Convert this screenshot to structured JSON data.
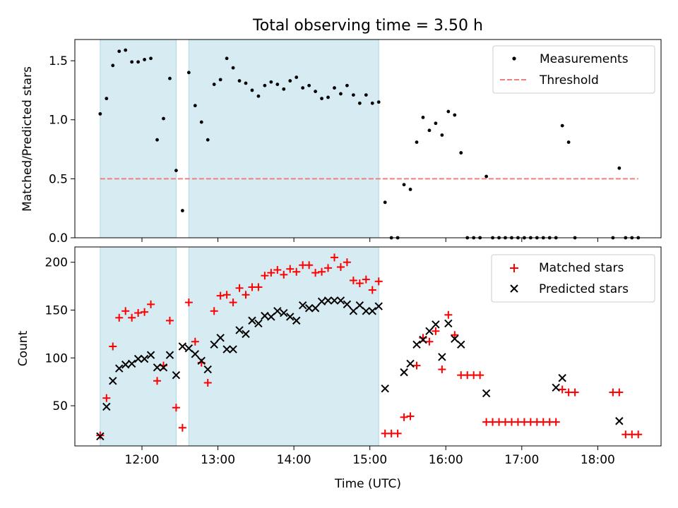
{
  "title": "Total observing time = 3.50 h",
  "colors": {
    "measurements": "#000000",
    "threshold": "#f08080",
    "matched": "#ff0000",
    "predicted": "#000000",
    "shade": "#add8e6"
  },
  "chart_data": [
    {
      "type": "scatter",
      "ylabel": "Matched/Predicted stars",
      "xlabel": "",
      "xlim": [
        "11:07",
        "18:50"
      ],
      "ylim": [
        0,
        1.68
      ],
      "yticks": [
        0.0,
        0.5,
        1.0,
        1.5
      ],
      "ytick_labels": [
        "0.0",
        "0.5",
        "1.0",
        "1.5"
      ],
      "grid": false,
      "legend_position": "top-right",
      "shaded_intervals": [
        [
          "11:27",
          "12:27"
        ],
        [
          "12:37",
          "15:07"
        ]
      ],
      "threshold": {
        "name": "Threshold",
        "value": 0.5,
        "x_range": [
          "11:27",
          "18:32"
        ]
      },
      "series": [
        {
          "name": "Measurements",
          "x": [
            "11:27",
            "11:32",
            "11:37",
            "11:42",
            "11:47",
            "11:52",
            "11:57",
            "12:02",
            "12:07",
            "12:12",
            "12:17",
            "12:22",
            "12:27",
            "12:32",
            "12:37",
            "12:42",
            "12:47",
            "12:52",
            "12:57",
            "13:02",
            "13:07",
            "13:12",
            "13:17",
            "13:22",
            "13:27",
            "13:32",
            "13:37",
            "13:42",
            "13:47",
            "13:52",
            "13:57",
            "14:02",
            "14:07",
            "14:12",
            "14:17",
            "14:22",
            "14:27",
            "14:32",
            "14:37",
            "14:42",
            "14:47",
            "14:52",
            "14:57",
            "15:02",
            "15:07",
            "15:12",
            "15:17",
            "15:22",
            "15:27",
            "15:32",
            "15:37",
            "15:42",
            "15:47",
            "15:52",
            "15:57",
            "16:02",
            "16:07",
            "16:12",
            "16:17",
            "16:22",
            "16:27",
            "16:32",
            "16:37",
            "16:42",
            "16:47",
            "16:52",
            "16:57",
            "17:02",
            "17:07",
            "17:12",
            "17:17",
            "17:22",
            "17:27",
            "17:32",
            "17:37",
            "17:42",
            "18:12",
            "18:17",
            "18:22",
            "18:27",
            "18:32"
          ],
          "y": [
            1.05,
            1.18,
            1.46,
            1.58,
            1.59,
            1.49,
            1.49,
            1.51,
            1.52,
            0.83,
            1.01,
            1.35,
            0.57,
            0.23,
            1.4,
            1.12,
            0.98,
            0.83,
            1.3,
            1.34,
            1.52,
            1.44,
            1.33,
            1.31,
            1.25,
            1.2,
            1.29,
            1.32,
            1.3,
            1.26,
            1.33,
            1.36,
            1.27,
            1.29,
            1.24,
            1.18,
            1.19,
            1.27,
            1.22,
            1.29,
            1.21,
            1.14,
            1.21,
            1.14,
            1.15,
            0.3,
            0.0,
            0.0,
            0.45,
            0.41,
            0.81,
            1.02,
            0.91,
            0.97,
            0.87,
            1.07,
            1.04,
            0.72,
            0.0,
            0.0,
            0.0,
            0.52,
            0.0,
            0.0,
            0.0,
            0.0,
            0.0,
            0.0,
            0.0,
            0.0,
            0.0,
            0.0,
            0.0,
            0.95,
            0.81,
            0.0,
            0.0,
            0.59,
            0.0,
            0.0,
            0.0
          ]
        }
      ]
    },
    {
      "type": "scatter",
      "ylabel": "Count",
      "xlabel": "Time (UTC)",
      "xlim": [
        "11:07",
        "18:50"
      ],
      "ylim": [
        8,
        216
      ],
      "yticks": [
        50,
        100,
        150,
        200
      ],
      "ytick_labels": [
        "50",
        "100",
        "150",
        "200"
      ],
      "xticks": [
        "12:00",
        "13:00",
        "14:00",
        "15:00",
        "16:00",
        "17:00",
        "18:00"
      ],
      "xtick_labels": [
        "12:00",
        "13:00",
        "14:00",
        "15:00",
        "16:00",
        "17:00",
        "18:00"
      ],
      "grid": false,
      "legend_position": "top-right",
      "shaded_intervals": [
        [
          "11:27",
          "12:27"
        ],
        [
          "12:37",
          "15:07"
        ]
      ],
      "series": [
        {
          "name": "Matched stars",
          "marker": "+",
          "x": [
            "11:27",
            "11:32",
            "11:37",
            "11:42",
            "11:47",
            "11:52",
            "11:57",
            "12:02",
            "12:07",
            "12:12",
            "12:17",
            "12:22",
            "12:27",
            "12:32",
            "12:37",
            "12:42",
            "12:47",
            "12:52",
            "12:57",
            "13:02",
            "13:07",
            "13:12",
            "13:17",
            "13:22",
            "13:27",
            "13:32",
            "13:37",
            "13:42",
            "13:47",
            "13:52",
            "13:57",
            "14:02",
            "14:07",
            "14:12",
            "14:17",
            "14:22",
            "14:27",
            "14:32",
            "14:37",
            "14:42",
            "14:47",
            "14:52",
            "14:57",
            "15:02",
            "15:07",
            "15:12",
            "15:17",
            "15:22",
            "15:27",
            "15:32",
            "15:37",
            "15:42",
            "15:47",
            "15:52",
            "15:57",
            "16:02",
            "16:07",
            "16:12",
            "16:17",
            "16:22",
            "16:27",
            "16:32",
            "16:37",
            "16:42",
            "16:47",
            "16:52",
            "16:57",
            "17:02",
            "17:07",
            "17:12",
            "17:17",
            "17:22",
            "17:27",
            "17:32",
            "17:37",
            "17:42",
            "18:12",
            "18:17",
            "18:22",
            "18:27",
            "18:32"
          ],
          "y": [
            19,
            58,
            112,
            142,
            149,
            142,
            147,
            148,
            156,
            76,
            92,
            139,
            48,
            27,
            158,
            117,
            95,
            74,
            149,
            165,
            166,
            158,
            173,
            166,
            174,
            174,
            186,
            189,
            192,
            187,
            193,
            190,
            197,
            197,
            189,
            190,
            194,
            205,
            195,
            200,
            181,
            178,
            182,
            171,
            180,
            21,
            21,
            21,
            38,
            39,
            92,
            121,
            117,
            128,
            88,
            145,
            124,
            82,
            82,
            82,
            82,
            33,
            33,
            33,
            33,
            33,
            33,
            33,
            33,
            33,
            33,
            33,
            33,
            67,
            64,
            64,
            64,
            64,
            20,
            20,
            20
          ]
        },
        {
          "name": "Predicted stars",
          "marker": "x",
          "x": [
            "11:27",
            "11:32",
            "11:37",
            "11:42",
            "11:47",
            "11:52",
            "11:57",
            "12:02",
            "12:07",
            "12:12",
            "12:17",
            "12:22",
            "12:27",
            "12:32",
            "12:37",
            "12:42",
            "12:47",
            "12:52",
            "12:57",
            "13:02",
            "13:07",
            "13:12",
            "13:17",
            "13:22",
            "13:27",
            "13:32",
            "13:37",
            "13:42",
            "13:47",
            "13:52",
            "13:57",
            "14:02",
            "14:07",
            "14:12",
            "14:17",
            "14:22",
            "14:27",
            "14:32",
            "14:37",
            "14:42",
            "14:47",
            "14:52",
            "14:57",
            "15:02",
            "15:07",
            "15:12",
            "15:27",
            "15:32",
            "15:37",
            "15:42",
            "15:47",
            "15:52",
            "15:57",
            "16:02",
            "16:07",
            "16:12",
            "16:32",
            "17:27",
            "17:32",
            "18:17"
          ],
          "y": [
            18,
            49,
            76,
            89,
            93,
            94,
            99,
            99,
            103,
            90,
            90,
            103,
            82,
            112,
            110,
            104,
            97,
            88,
            114,
            121,
            109,
            109,
            129,
            125,
            139,
            136,
            144,
            143,
            149,
            147,
            143,
            139,
            155,
            152,
            152,
            159,
            160,
            160,
            160,
            156,
            149,
            155,
            149,
            149,
            154,
            68,
            85,
            94,
            114,
            119,
            128,
            135,
            101,
            136,
            120,
            114,
            63,
            69,
            79,
            34
          ]
        }
      ]
    }
  ]
}
